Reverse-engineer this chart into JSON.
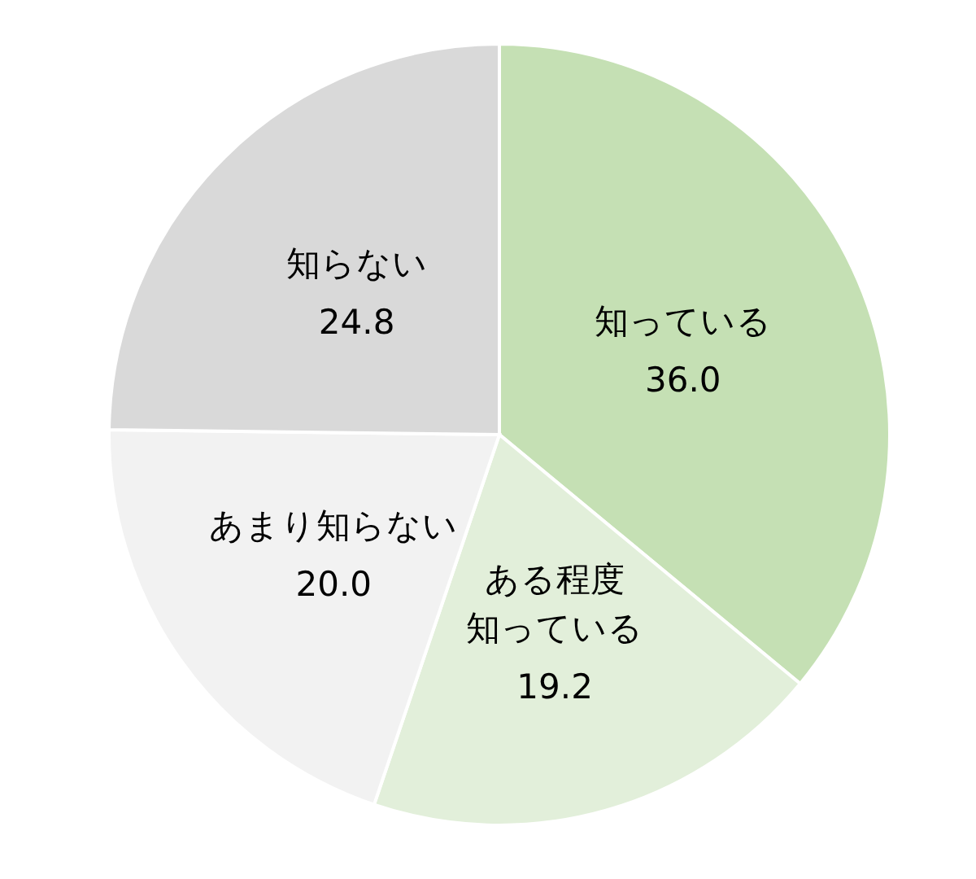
{
  "chart_data": {
    "type": "pie",
    "categories": [
      "知っている",
      "ある程度知っている",
      "あまり知らない",
      "知らない"
    ],
    "values": [
      36.0,
      19.2,
      20.0,
      24.8
    ],
    "value_labels": [
      "36.0",
      "19.2",
      "20.0",
      "24.8"
    ],
    "colors": [
      "#c5e0b4",
      "#e2efda",
      "#f2f2f2",
      "#d9d9d9"
    ]
  }
}
